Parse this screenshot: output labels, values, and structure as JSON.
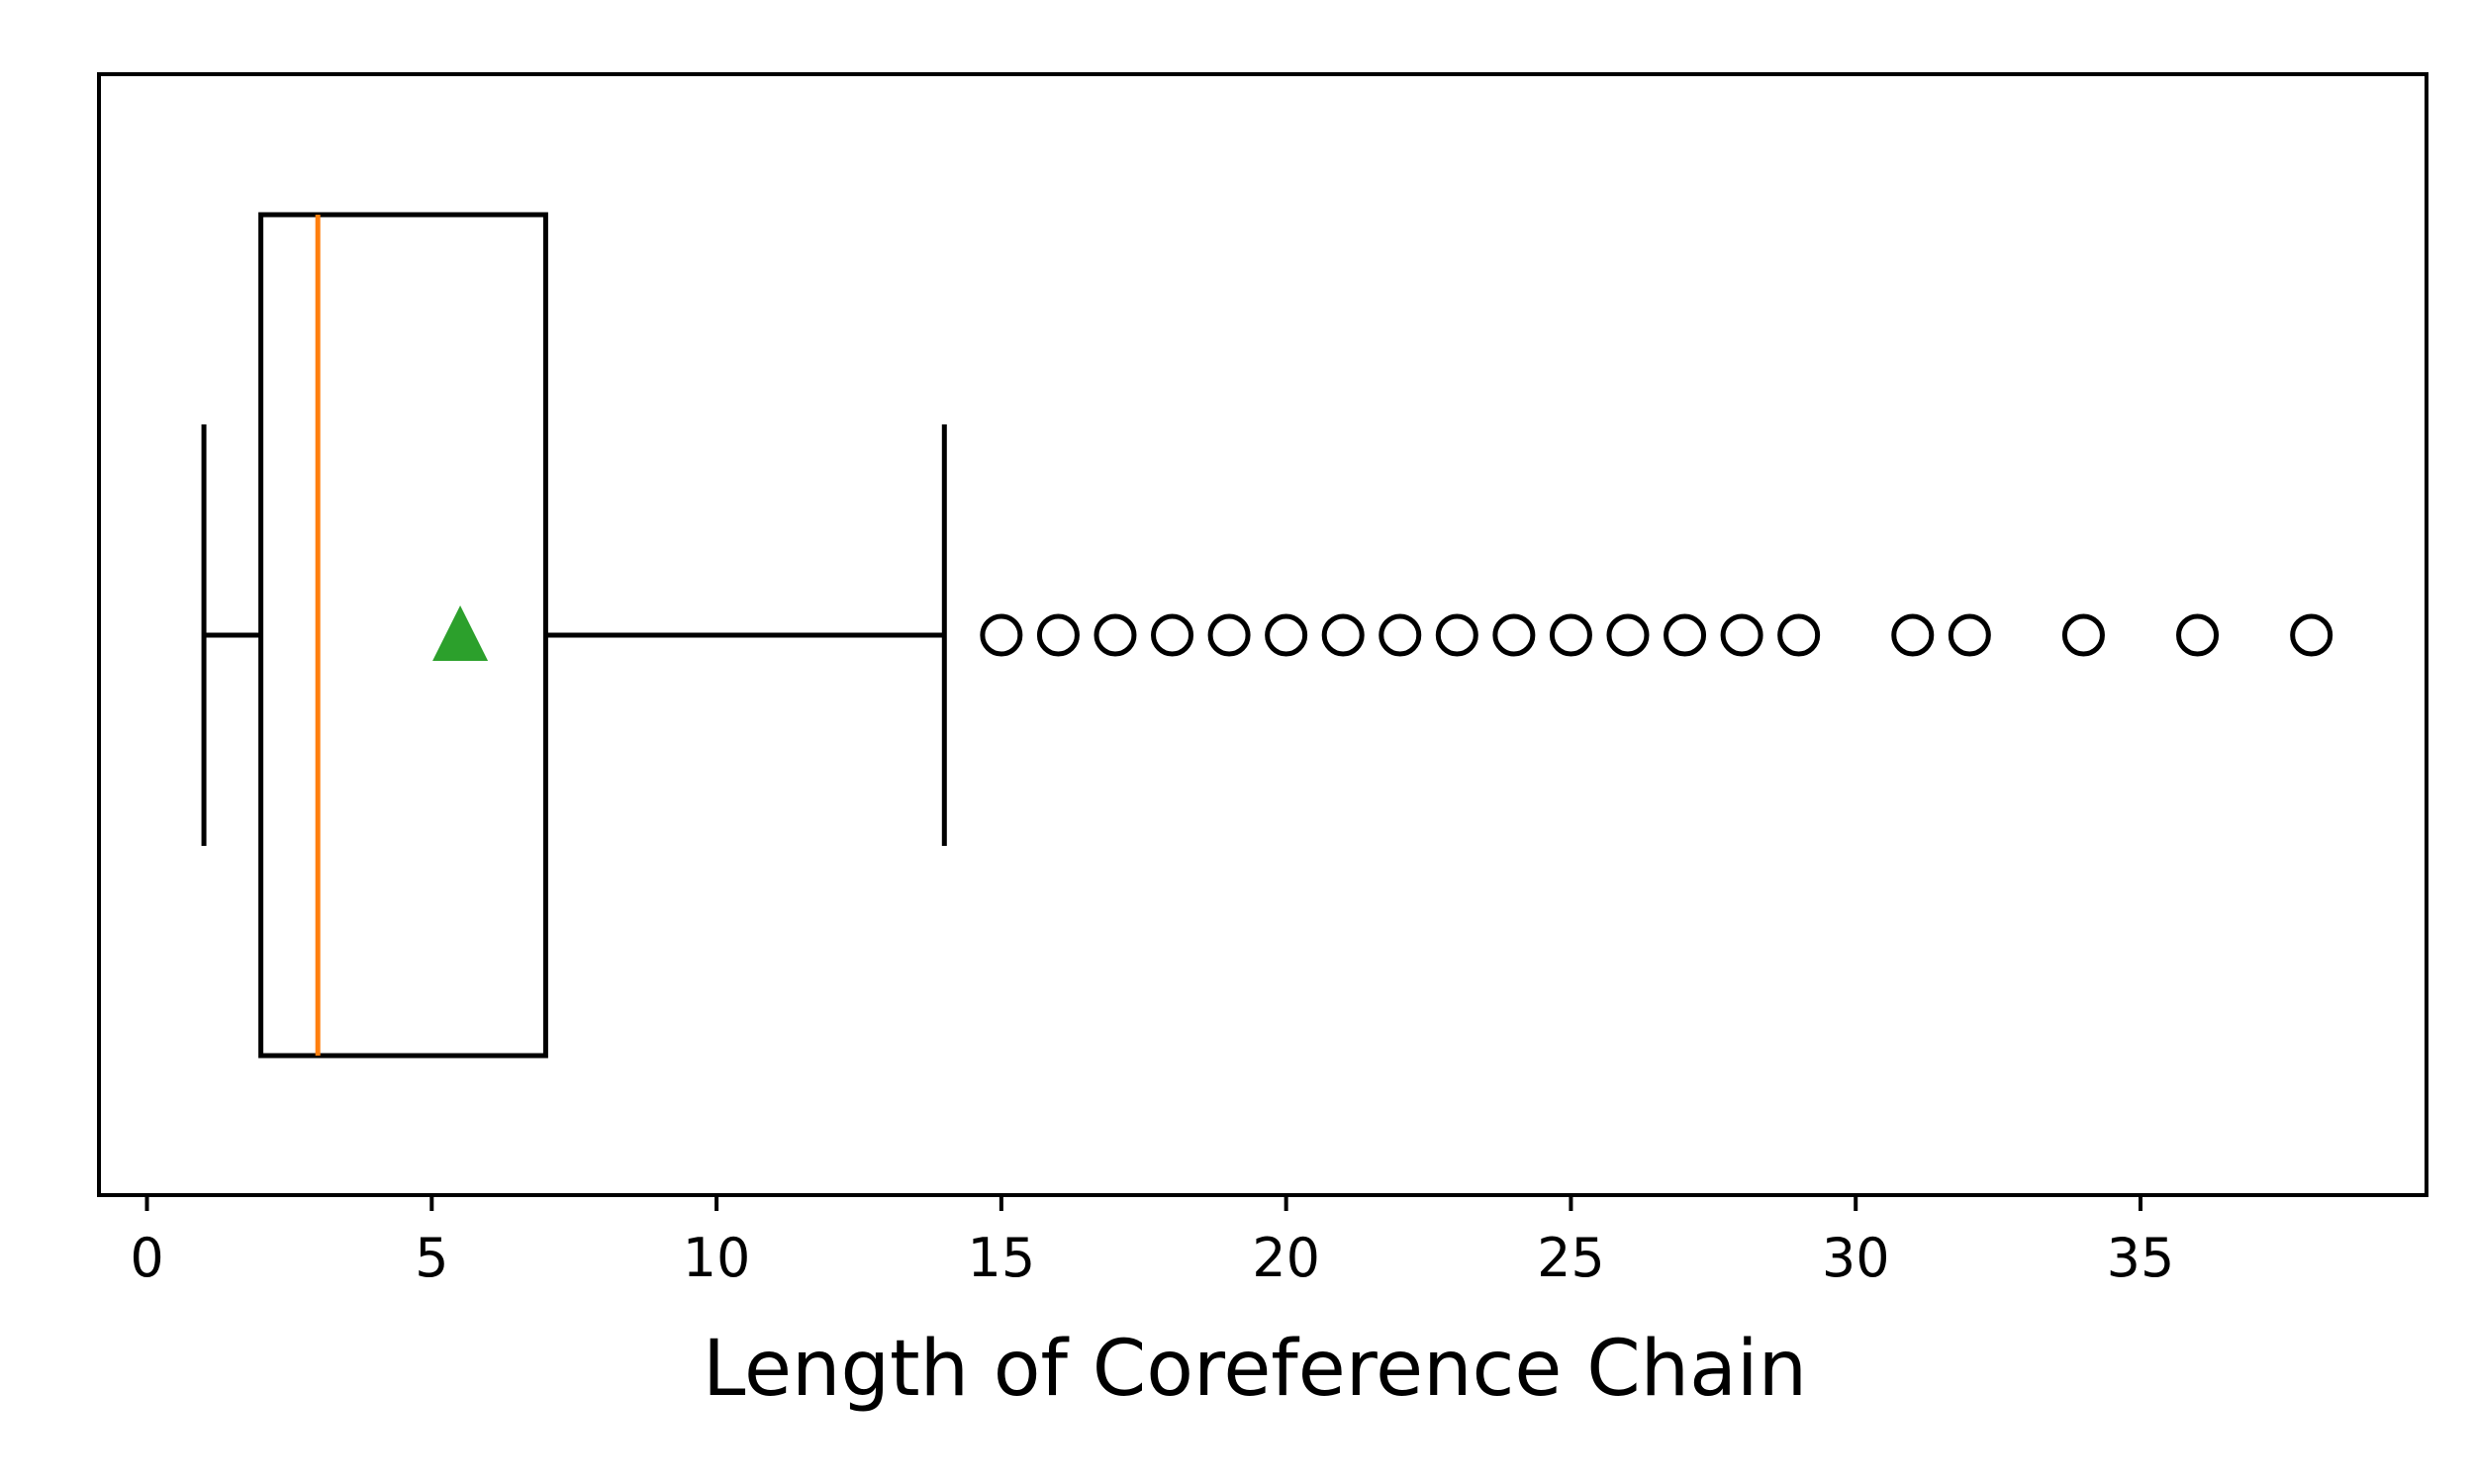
{
  "chart_data": {
    "type": "boxplot",
    "orientation": "horizontal",
    "title": "",
    "xlabel": "Length of Coreference Chain",
    "ylabel": "",
    "xlim": [
      -0.9,
      39.9
    ],
    "xticks": [
      0,
      5,
      10,
      15,
      20,
      25,
      30,
      35
    ],
    "xtick_labels": [
      "0",
      "5",
      "10",
      "15",
      "20",
      "25",
      "30",
      "35"
    ],
    "grid": false,
    "legend": "none",
    "box": {
      "whisker_low": 1,
      "q1": 2,
      "median": 3,
      "mean": 5.5,
      "q3": 7,
      "whisker_high": 14
    },
    "outliers": [
      15,
      16,
      17,
      18,
      19,
      20,
      21,
      22,
      23,
      24,
      25,
      26,
      27,
      28,
      29,
      31,
      32,
      34,
      36,
      38
    ],
    "colors": {
      "box": "#000000",
      "median": "#ff7f0e",
      "mean": "#2ca02c",
      "outlier": "#000000"
    }
  }
}
